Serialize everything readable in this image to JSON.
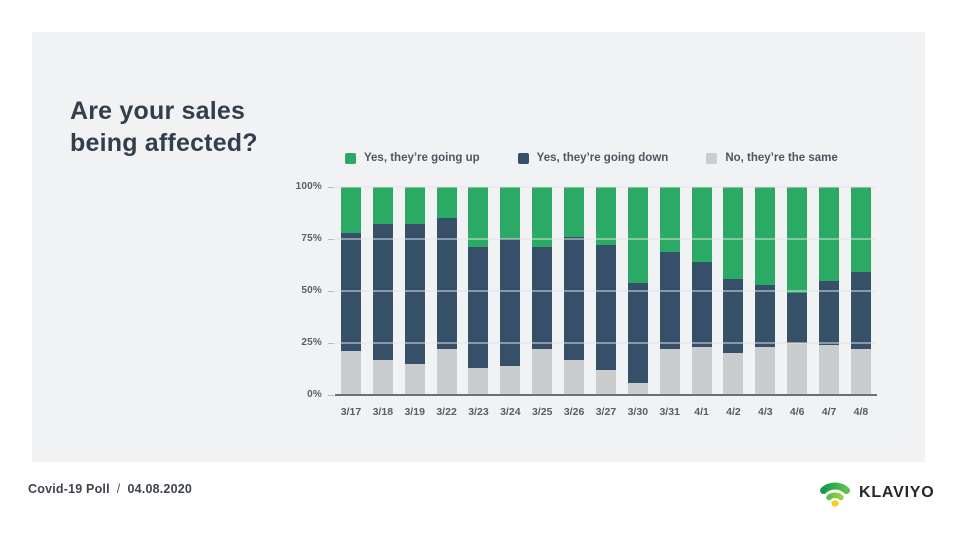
{
  "title": "Are your sales being affected?",
  "footer": {
    "label": "Covid-19 Poll",
    "separator": "/",
    "date": "04.08.2020",
    "brand": "KLAVIYO"
  },
  "colors": {
    "card_background": "#f1f2f3",
    "page_background": "#ffffff",
    "up_green": "#2aaa64",
    "down_navy": "#365069",
    "same_gray": "#cbcccd",
    "gridline": "#e0e2e4",
    "axis_line": "#6a7076",
    "logo_green_dark": "#169a4c",
    "logo_green_light": "#5ec14e",
    "logo_lime": "#9ccf43",
    "logo_yellow": "#f2cf1c"
  },
  "chart_data": {
    "type": "bar",
    "stacked": true,
    "stack_unit": "percent",
    "title": "Are your sales being affected?",
    "categories": [
      "3/17",
      "3/18",
      "3/19",
      "3/22",
      "3/23",
      "3/24",
      "3/25",
      "3/26",
      "3/27",
      "3/30",
      "3/31",
      "4/1",
      "4/2",
      "4/3",
      "4/6",
      "4/7",
      "4/8"
    ],
    "series": [
      {
        "name": "Yes, they’re going up",
        "color": "#2aaa64",
        "values": [
          22,
          18,
          18,
          15,
          29,
          25,
          29,
          24,
          28,
          46,
          31,
          36,
          44,
          47,
          51,
          45,
          41
        ]
      },
      {
        "name": "Yes, they’re going down",
        "color": "#365069",
        "values": [
          57,
          65,
          67,
          63,
          58,
          61,
          49,
          59,
          60,
          48,
          47,
          41,
          36,
          30,
          24,
          31,
          37
        ]
      },
      {
        "name": "No, they’re the same",
        "color": "#cbcccd",
        "values": [
          21,
          17,
          15,
          22,
          13,
          14,
          22,
          17,
          12,
          6,
          22,
          23,
          20,
          23,
          25,
          24,
          22
        ]
      }
    ],
    "stack_order_bottom_to_top": [
      "No, they’re the same",
      "Yes, they’re going down",
      "Yes, they’re going up"
    ],
    "yticks": [
      "100%",
      "75%",
      "50%",
      "25%",
      "0%"
    ],
    "ylim": [
      0,
      100
    ],
    "grid": "horizontal",
    "legend_position": "top"
  }
}
